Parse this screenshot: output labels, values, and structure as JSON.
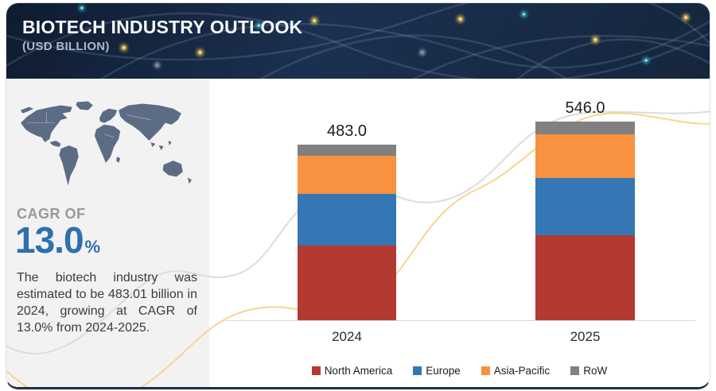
{
  "header": {
    "title": "BIOTECH INDUSTRY OUTLOOK",
    "subtitle": "(USD BILLION)"
  },
  "sidebar": {
    "cagr_label": "CAGR OF",
    "cagr_value": "13.0",
    "cagr_unit": "%",
    "description": "The biotech industry was estimated to be 483.01 billion in 2024, growing at CAGR of 13.0% from 2024-2025."
  },
  "chart_data": {
    "type": "bar",
    "stacked": true,
    "title": "Biotech Industry Outlook (USD Billion)",
    "categories": [
      "2024",
      "2025"
    ],
    "series": [
      {
        "name": "North America",
        "color": "#b33a31",
        "values": [
          205.5,
          233.5
        ]
      },
      {
        "name": "Europe",
        "color": "#3577b4",
        "values": [
          142.0,
          158.5
        ]
      },
      {
        "name": "Asia-Pacific",
        "color": "#f89140",
        "values": [
          105.0,
          120.0
        ]
      },
      {
        "name": "RoW",
        "color": "#808080",
        "values": [
          30.5,
          34.0
        ]
      }
    ],
    "totals": [
      483.0,
      546.0
    ],
    "total_labels": [
      "483.0",
      "546.0"
    ],
    "xlabel": "",
    "ylabel": "USD Billion",
    "ylim": [
      0,
      560
    ],
    "grid": false,
    "legend_position": "bottom"
  },
  "colors": {
    "header_bg": "#15273f",
    "accent_blue": "#2e6fae",
    "sidebar_bg": "#f2f2f3",
    "axis": "#d9d9d9",
    "curve_gray": "#dcdcdc",
    "curve_yellow": "#f5d78c",
    "map": "#5d6c85"
  }
}
